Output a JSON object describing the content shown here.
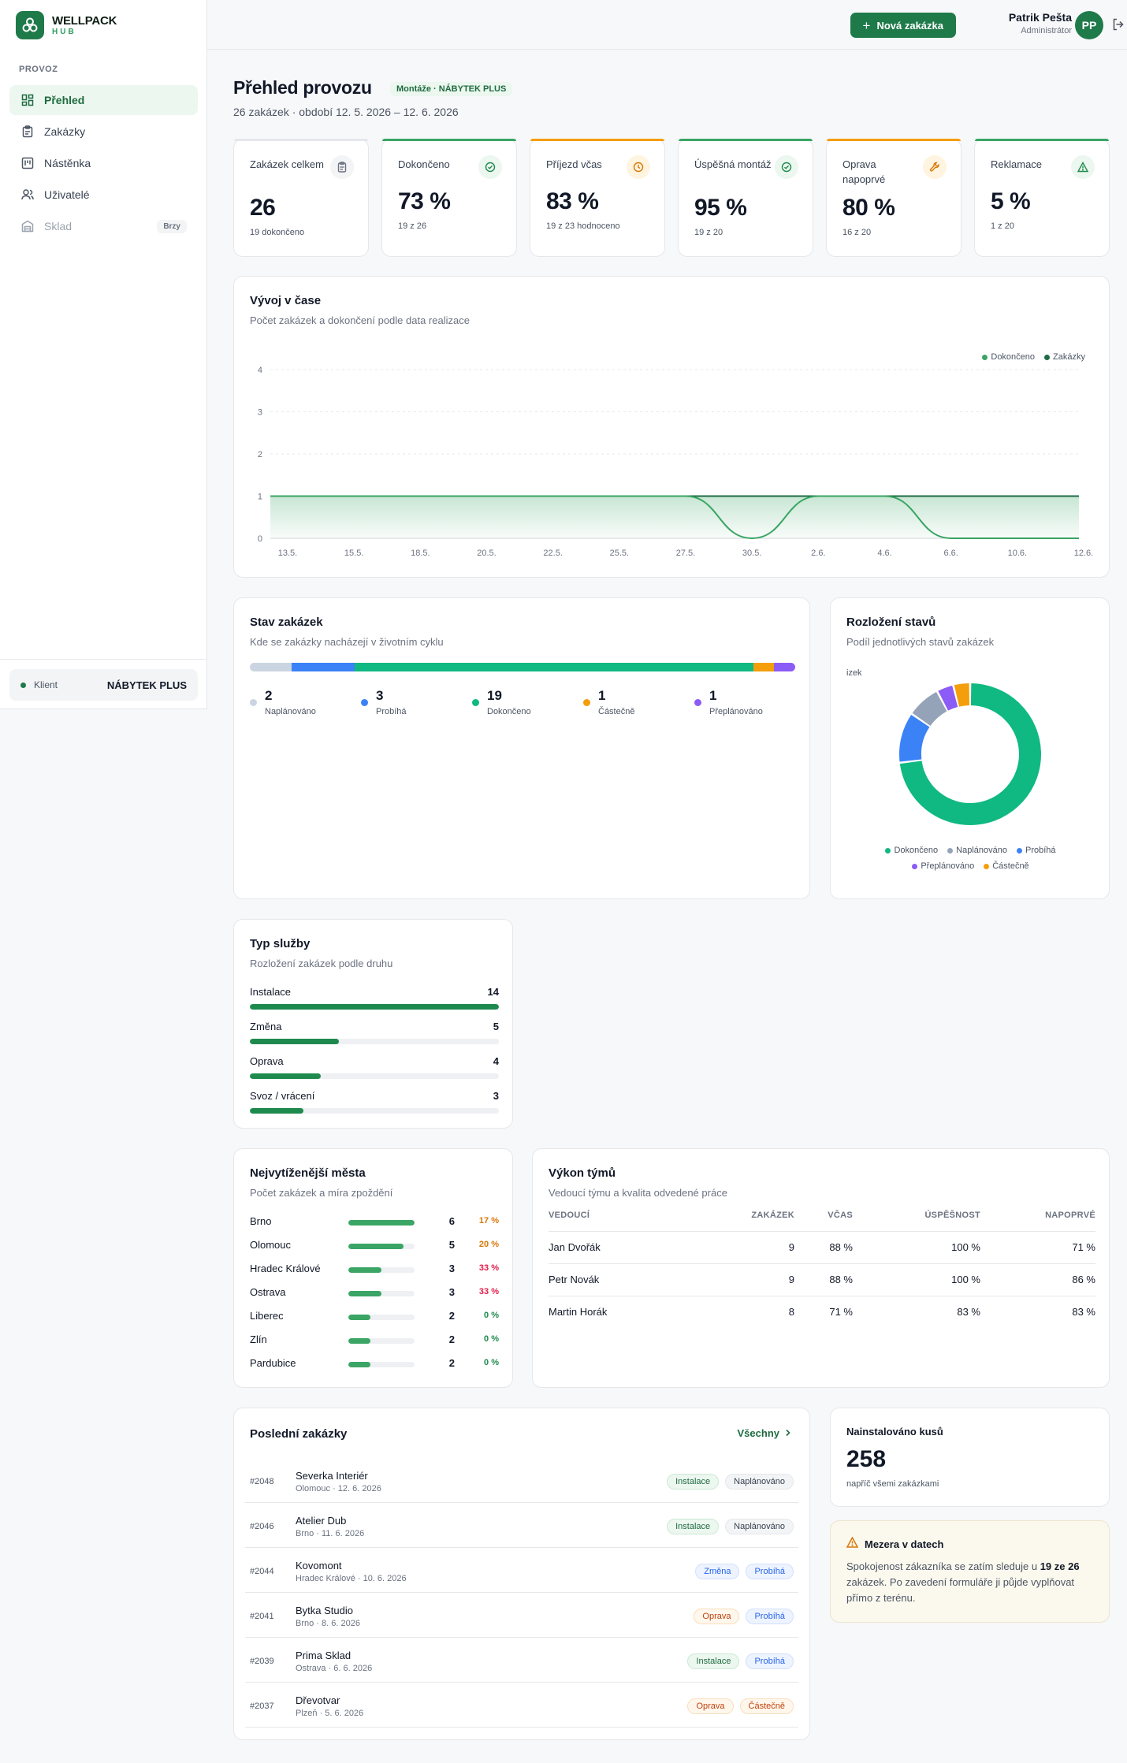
{
  "app": {
    "logo_line1": "WELLPACK",
    "logo_line2": "HUB"
  },
  "sidebar": {
    "section": "PROVOZ",
    "items": [
      {
        "label": "Přehled",
        "icon": "dashboard-icon",
        "active": true
      },
      {
        "label": "Zakázky",
        "icon": "clipboard-icon"
      },
      {
        "label": "Nástěnka",
        "icon": "board-icon"
      },
      {
        "label": "Uživatelé",
        "icon": "users-icon"
      },
      {
        "label": "Sklad",
        "icon": "warehouse-icon",
        "badge": "Brzy",
        "disabled": true
      }
    ],
    "client_label": "Klient",
    "client_name": "NÁBYTEK PLUS"
  },
  "header": {
    "new_button": "Nová zakázka",
    "user_name": "Patrik Pešta",
    "user_role": "Administrátor",
    "avatar": "PP"
  },
  "page": {
    "title": "Přehled provozu",
    "tag": "Montáže · NÁBYTEK PLUS",
    "subtitle": "26 zakázek · období 12. 5. 2026 – 12. 6. 2026"
  },
  "kpis": [
    {
      "label": "Zakázek celkem",
      "value": "26",
      "sub": "19 dokončeno",
      "icon": "clipboard-icon",
      "accent": "#e5e7eb",
      "icon_bg": "#f3f4f6",
      "icon_color": "#6b7280"
    },
    {
      "label": "Dokončeno",
      "value": "73 %",
      "sub": "19 z 26",
      "icon": "check-circle-icon",
      "accent": "#3aa564",
      "icon_bg": "#ecf7ef",
      "icon_color": "#1e8a4e"
    },
    {
      "label": "Příjezd včas",
      "value": "83 %",
      "sub": "19 z 23 hodnoceno",
      "icon": "clock-icon",
      "accent": "#f59e0b",
      "icon_bg": "#fff4e0",
      "icon_color": "#d97706"
    },
    {
      "label": "Úspěšná montáž",
      "value": "95 %",
      "sub": "19 z 20",
      "icon": "check-circle-icon",
      "accent": "#3aa564",
      "icon_bg": "#ecf7ef",
      "icon_color": "#1e8a4e"
    },
    {
      "label": "Oprava napoprvé",
      "value": "80 %",
      "sub": "16 z 20",
      "icon": "wrench-icon",
      "accent": "#f59e0b",
      "icon_bg": "#fff4e0",
      "icon_color": "#d97706"
    },
    {
      "label": "Reklamace",
      "value": "5 %",
      "sub": "1 z 20",
      "icon": "warning-icon",
      "accent": "#3aa564",
      "icon_bg": "#ecf7ef",
      "icon_color": "#1e8a4e"
    }
  ],
  "trend": {
    "title": "Vývoj v čase",
    "subtitle": "Počet zakázek a dokončení podle data realizace"
  },
  "chart_data": {
    "type": "area",
    "x": [
      "13.5.",
      "15.5.",
      "18.5.",
      "20.5.",
      "22.5.",
      "25.5.",
      "27.5.",
      "30.5.",
      "2.6.",
      "4.6.",
      "6.6.",
      "10.6.",
      "12.6."
    ],
    "series": [
      {
        "name": "Dokončeno",
        "color": "#3aa564",
        "values": [
          1,
          1,
          1,
          1,
          1,
          1,
          1,
          0,
          1,
          1,
          0,
          0,
          0
        ]
      },
      {
        "name": "Zakázky",
        "color": "#1f6b45",
        "values": [
          1,
          1,
          1,
          1,
          1,
          1,
          1,
          1,
          1,
          1,
          1,
          1,
          1
        ]
      }
    ],
    "yticks": [
      0,
      1,
      2,
      3,
      4
    ],
    "ylim": [
      0,
      4
    ],
    "legend": "top-right",
    "grid": true
  },
  "stav": {
    "title": "Stav zakázek",
    "subtitle": "Kde se zakázky nacházejí v životním cyklu",
    "items": [
      {
        "label": "Naplánováno",
        "value": 2,
        "color": "#cbd5e1"
      },
      {
        "label": "Probíhá",
        "value": 3,
        "color": "#3b82f6"
      },
      {
        "label": "Dokončeno",
        "value": 19,
        "color": "#10b981"
      },
      {
        "label": "Částečně",
        "value": 1,
        "color": "#f59e0b"
      },
      {
        "label": "Přeplánováno",
        "value": 1,
        "color": "#8b5cf6"
      }
    ]
  },
  "rozlozeni": {
    "title": "Rozložení stavů",
    "subtitle": "Podíl jednotlivých stavů zakázek",
    "clipped_label": "izek",
    "slices": [
      {
        "label": "Dokončeno",
        "value": 19,
        "color": "#10b981"
      },
      {
        "label": "Probíhá",
        "value": 3,
        "color": "#3b82f6"
      },
      {
        "label": "Naplánováno",
        "value": 2,
        "color": "#94a3b8"
      },
      {
        "label": "Přeplánováno",
        "value": 1,
        "color": "#8b5cf6"
      },
      {
        "label": "Částečně",
        "value": 1,
        "color": "#f59e0b"
      }
    ],
    "legend": [
      "Dokončeno",
      "Naplánováno",
      "Probíhá",
      "Přeplánováno",
      "Částečně"
    ]
  },
  "typ": {
    "title": "Typ služby",
    "subtitle": "Rozložení zakázek podle druhu",
    "max": 14,
    "items": [
      {
        "label": "Instalace",
        "value": 14
      },
      {
        "label": "Změna",
        "value": 5
      },
      {
        "label": "Oprava",
        "value": 4
      },
      {
        "label": "Svoz / vrácení",
        "value": 3
      }
    ]
  },
  "mesta": {
    "title": "Nejvytíženější města",
    "subtitle": "Počet zakázek a míra zpoždění",
    "max": 6,
    "items": [
      {
        "name": "Brno",
        "count": 6,
        "delay": "17 %",
        "delay_color": "#d97706"
      },
      {
        "name": "Olomouc",
        "count": 5,
        "delay": "20 %",
        "delay_color": "#d97706"
      },
      {
        "name": "Hradec Králové",
        "count": 3,
        "delay": "33 %",
        "delay_color": "#e11d48"
      },
      {
        "name": "Ostrava",
        "count": 3,
        "delay": "33 %",
        "delay_color": "#e11d48"
      },
      {
        "name": "Liberec",
        "count": 2,
        "delay": "0 %",
        "delay_color": "#1e8a4e"
      },
      {
        "name": "Zlín",
        "count": 2,
        "delay": "0 %",
        "delay_color": "#1e8a4e"
      },
      {
        "name": "Pardubice",
        "count": 2,
        "delay": "0 %",
        "delay_color": "#1e8a4e"
      }
    ]
  },
  "tymy": {
    "title": "Výkon týmů",
    "subtitle": "Vedoucí týmu a kvalita odvedené práce",
    "headers": [
      "VEDOUCÍ",
      "ZAKÁZEK",
      "VČAS",
      "ÚSPĚŠNOST",
      "NAPOPRVÉ"
    ],
    "rows": [
      [
        "Jan Dvořák",
        "9",
        "88 %",
        "100 %",
        "71 %"
      ],
      [
        "Petr Novák",
        "9",
        "88 %",
        "100 %",
        "86 %"
      ],
      [
        "Martin Horák",
        "8",
        "71 %",
        "83 %",
        "83 %"
      ]
    ]
  },
  "posledni": {
    "title": "Poslední zakázky",
    "all_link": "Všechny",
    "rows": [
      {
        "id": "#2048",
        "name": "Severka Interiér",
        "meta": "Olomouc · 12. 6. 2026",
        "type": "Instalace",
        "type_style": "green",
        "status": "Naplánováno",
        "status_style": "gray"
      },
      {
        "id": "#2046",
        "name": "Atelier Dub",
        "meta": "Brno · 11. 6. 2026",
        "type": "Instalace",
        "type_style": "green",
        "status": "Naplánováno",
        "status_style": "gray"
      },
      {
        "id": "#2044",
        "name": "Kovomont",
        "meta": "Hradec Králové · 10. 6. 2026",
        "type": "Změna",
        "type_style": "blue",
        "status": "Probíhá",
        "status_style": "blue"
      },
      {
        "id": "#2041",
        "name": "Bytka Studio",
        "meta": "Brno · 8. 6. 2026",
        "type": "Oprava",
        "type_style": "orange",
        "status": "Probíhá",
        "status_style": "blue"
      },
      {
        "id": "#2039",
        "name": "Prima Sklad",
        "meta": "Ostrava · 6. 6. 2026",
        "type": "Instalace",
        "type_style": "green",
        "status": "Probíhá",
        "status_style": "blue"
      },
      {
        "id": "#2037",
        "name": "Dřevotvar",
        "meta": "Plzeň · 5. 6. 2026",
        "type": "Oprava",
        "type_style": "orange",
        "status": "Částečně",
        "status_style": "orange"
      }
    ]
  },
  "instalovano": {
    "title": "Nainstalováno kusů",
    "value": "258",
    "sub": "napříč všemi zakázkami"
  },
  "mezera": {
    "title": "Mezera v datech",
    "text_before": "Spokojenost zákazníka se zatím sleduje u ",
    "text_bold": "19 ze 26",
    "text_after": " zakázek. Po zavedení formuláře ji půjde vyplňovat přímo z terénu."
  }
}
